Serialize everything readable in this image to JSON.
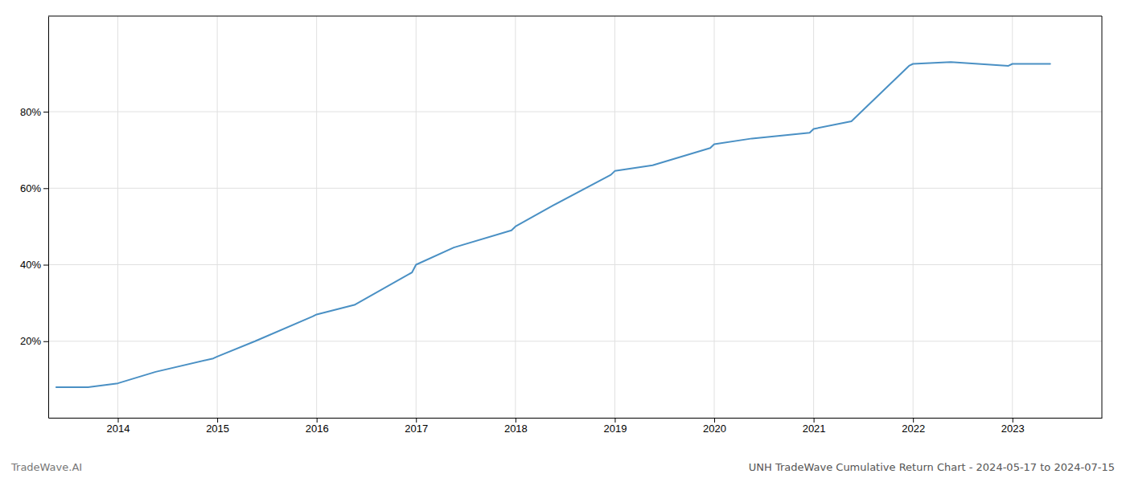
{
  "chart_data": {
    "type": "line",
    "title": "UNH TradeWave Cumulative Return Chart - 2024-05-17 to 2024-07-15",
    "annotations": [
      "TradeWave.AI"
    ],
    "x": [
      2013.38,
      2013.7,
      2014.0,
      2014.38,
      2014.96,
      2015.0,
      2015.38,
      2015.96,
      2016.0,
      2016.38,
      2016.96,
      2017.0,
      2017.38,
      2017.96,
      2018.0,
      2018.38,
      2018.96,
      2019.0,
      2019.38,
      2019.96,
      2020.0,
      2020.38,
      2020.96,
      2021.0,
      2021.38,
      2021.96,
      2022.0,
      2022.38,
      2022.96,
      2023.0,
      2023.38
    ],
    "values": [
      0.08,
      0.08,
      0.09,
      0.12,
      0.155,
      0.16,
      0.2,
      0.265,
      0.27,
      0.295,
      0.38,
      0.4,
      0.445,
      0.49,
      0.5,
      0.555,
      0.635,
      0.645,
      0.66,
      0.705,
      0.715,
      0.73,
      0.745,
      0.755,
      0.775,
      0.92,
      0.925,
      0.93,
      0.92,
      0.925,
      0.925
    ],
    "color": "#4a90c4",
    "xlim": [
      2013.3,
      2023.9
    ],
    "ylim": [
      0.0,
      1.05
    ],
    "xticks": [
      2014,
      2015,
      2016,
      2017,
      2018,
      2019,
      2020,
      2021,
      2022,
      2023
    ],
    "yticks": [
      {
        "value": 0.2,
        "label": "20%"
      },
      {
        "value": 0.4,
        "label": "40%"
      },
      {
        "value": 0.6,
        "label": "60%"
      },
      {
        "value": 0.8,
        "label": "80%"
      }
    ],
    "grid": true
  }
}
